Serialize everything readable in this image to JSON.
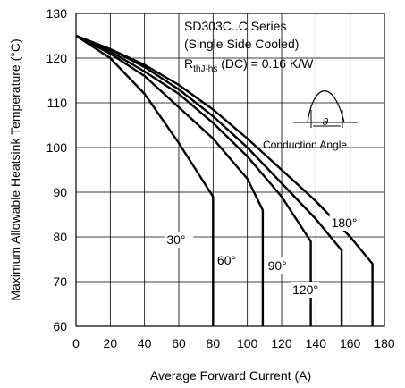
{
  "chart_data": {
    "type": "line",
    "title_lines": [
      "SD303C..C Series",
      "(Single Side Cooled)"
    ],
    "rth": {
      "main": "R",
      "sub": "thJ-hs",
      "rest": " (DC) = 0.16 K/W"
    },
    "inset_label": "Conduction Angle",
    "xlabel": "Average Forward Current (A)",
    "ylabel": "Maximum Allowable Heatsink Temperature (°C)",
    "xlim": [
      0,
      180
    ],
    "ylim": [
      60,
      130
    ],
    "xticks": [
      "0",
      "20",
      "40",
      "60",
      "80",
      "100",
      "120",
      "140",
      "160",
      "180"
    ],
    "yticks": [
      "60",
      "70",
      "80",
      "90",
      "100",
      "110",
      "120",
      "130"
    ],
    "grid": true,
    "series": [
      {
        "name": "30°",
        "points": [
          [
            0,
            125
          ],
          [
            20,
            120
          ],
          [
            40,
            112
          ],
          [
            60,
            101
          ],
          [
            80,
            89
          ],
          [
            80,
            60
          ]
        ]
      },
      {
        "name": "60°",
        "points": [
          [
            0,
            125
          ],
          [
            20,
            121
          ],
          [
            40,
            116
          ],
          [
            60,
            109
          ],
          [
            80,
            102
          ],
          [
            100,
            93
          ],
          [
            109,
            86
          ],
          [
            109,
            60
          ]
        ]
      },
      {
        "name": "90°",
        "points": [
          [
            0,
            125
          ],
          [
            20,
            121.5
          ],
          [
            40,
            117
          ],
          [
            60,
            112
          ],
          [
            80,
            105.5
          ],
          [
            100,
            98
          ],
          [
            120,
            89
          ],
          [
            137,
            79
          ],
          [
            137,
            60
          ]
        ]
      },
      {
        "name": "120°",
        "points": [
          [
            0,
            125
          ],
          [
            20,
            122
          ],
          [
            40,
            118
          ],
          [
            60,
            113
          ],
          [
            80,
            107
          ],
          [
            100,
            100
          ],
          [
            120,
            92
          ],
          [
            140,
            84
          ],
          [
            155,
            77
          ],
          [
            155,
            60
          ]
        ]
      },
      {
        "name": "180°",
        "points": [
          [
            0,
            125
          ],
          [
            20,
            122
          ],
          [
            40,
            118.5
          ],
          [
            60,
            114
          ],
          [
            80,
            108.5
          ],
          [
            100,
            102
          ],
          [
            120,
            95
          ],
          [
            140,
            88
          ],
          [
            160,
            80
          ],
          [
            173,
            74
          ],
          [
            173,
            60
          ]
        ]
      }
    ]
  }
}
